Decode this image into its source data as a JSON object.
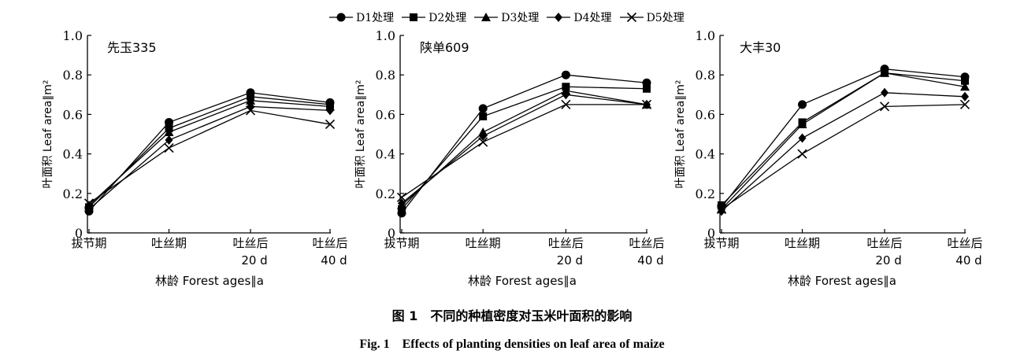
{
  "legend": [
    {
      "name": "D1处理",
      "marker": "circle"
    },
    {
      "name": "D2处理",
      "marker": "square"
    },
    {
      "name": "D3处理",
      "marker": "triangle"
    },
    {
      "name": "D4处理",
      "marker": "diamond"
    },
    {
      "name": "D5处理",
      "marker": "cross"
    }
  ],
  "caption_cn": "图 1　不同的种植密度对玉米叶面积的影响",
  "caption_en": "Fig. 1　Effects of planting densities on leaf area of maize",
  "chart_data": [
    {
      "type": "line",
      "title": "先玉335",
      "xlabel": "林龄 Forest ages∥a",
      "ylabel": "叶面积 Leaf area∥m²",
      "categories": [
        "拔节期",
        "吐丝期",
        "吐丝后\n20 d",
        "吐丝后\n40 d"
      ],
      "ylim": [
        0,
        1.0
      ],
      "yticks": [
        "0",
        "0.2",
        "0.4",
        "0.6",
        "0.8",
        "1.0"
      ],
      "series": [
        {
          "name": "D1处理",
          "marker": "circle",
          "values": [
            0.11,
            0.56,
            0.71,
            0.66
          ]
        },
        {
          "name": "D2处理",
          "marker": "square",
          "values": [
            0.13,
            0.53,
            0.69,
            0.65
          ]
        },
        {
          "name": "D3处理",
          "marker": "triangle",
          "values": [
            0.14,
            0.51,
            0.67,
            0.64
          ]
        },
        {
          "name": "D4处理",
          "marker": "diamond",
          "values": [
            0.12,
            0.47,
            0.64,
            0.62
          ]
        },
        {
          "name": "D5处理",
          "marker": "cross",
          "values": [
            0.15,
            0.43,
            0.62,
            0.55
          ]
        }
      ]
    },
    {
      "type": "line",
      "title": "陕单609",
      "xlabel": "林龄 Forest ages∥a",
      "ylabel": "叶面积 Leaf area∥m²",
      "categories": [
        "拔节期",
        "吐丝期",
        "吐丝后\n20 d",
        "吐丝后\n40 d"
      ],
      "ylim": [
        0,
        1.0
      ],
      "yticks": [
        "0",
        "0.2",
        "0.4",
        "0.6",
        "0.8",
        "1.0"
      ],
      "series": [
        {
          "name": "D1处理",
          "marker": "circle",
          "values": [
            0.1,
            0.63,
            0.8,
            0.76
          ]
        },
        {
          "name": "D2处理",
          "marker": "square",
          "values": [
            0.12,
            0.59,
            0.74,
            0.73
          ]
        },
        {
          "name": "D3处理",
          "marker": "triangle",
          "values": [
            0.14,
            0.51,
            0.72,
            0.65
          ]
        },
        {
          "name": "D4处理",
          "marker": "diamond",
          "values": [
            0.15,
            0.49,
            0.7,
            0.65
          ]
        },
        {
          "name": "D5处理",
          "marker": "cross",
          "values": [
            0.18,
            0.46,
            0.65,
            0.65
          ]
        }
      ]
    },
    {
      "type": "line",
      "title": "大丰30",
      "xlabel": "林龄 Forest ages∥a",
      "ylabel": "叶面积 Leaf area∥m²",
      "categories": [
        "拔节期",
        "吐丝期",
        "吐丝后\n20 d",
        "吐丝后\n40 d"
      ],
      "ylim": [
        0,
        1.0
      ],
      "yticks": [
        "0",
        "0.2",
        "0.4",
        "0.6",
        "0.8",
        "1.0"
      ],
      "series": [
        {
          "name": "D1处理",
          "marker": "circle",
          "values": [
            0.13,
            0.65,
            0.83,
            0.79
          ]
        },
        {
          "name": "D2处理",
          "marker": "square",
          "values": [
            0.14,
            0.56,
            0.81,
            0.77
          ]
        },
        {
          "name": "D3处理",
          "marker": "triangle",
          "values": [
            0.12,
            0.55,
            0.81,
            0.74
          ]
        },
        {
          "name": "D4处理",
          "marker": "diamond",
          "values": [
            0.11,
            0.48,
            0.71,
            0.69
          ]
        },
        {
          "name": "D5处理",
          "marker": "cross",
          "values": [
            0.12,
            0.4,
            0.64,
            0.65
          ]
        }
      ]
    }
  ]
}
